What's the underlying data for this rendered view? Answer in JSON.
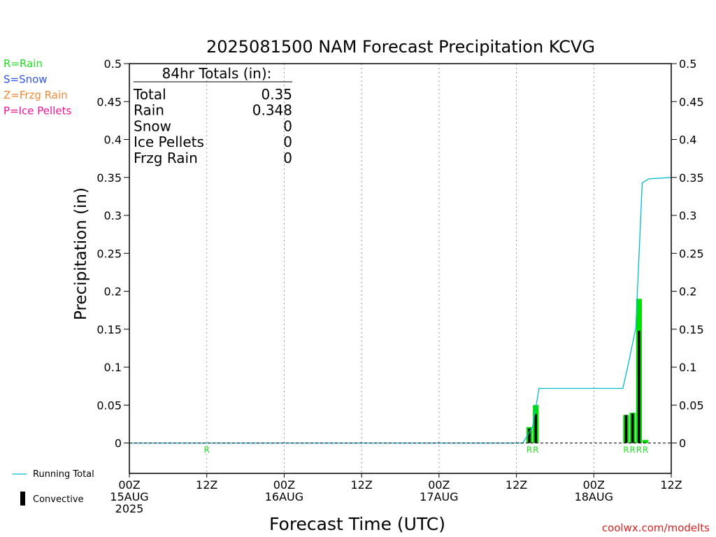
{
  "chart_data": {
    "type": "bar",
    "title": "2025081500 NAM Forecast Precipitation KCVG",
    "xlabel": "Forecast Time (UTC)",
    "ylabel": "Precipitation (in)",
    "ylim": [
      -0.04,
      0.5
    ],
    "xlim_hours": [
      0,
      84
    ],
    "grid": "vertical dotted",
    "y_ticks": [
      {
        "value": 0,
        "label": "0"
      },
      {
        "value": 0.05,
        "label": "0.05"
      },
      {
        "value": 0.1,
        "label": "0.1"
      },
      {
        "value": 0.15,
        "label": "0.15"
      },
      {
        "value": 0.2,
        "label": "0.2"
      },
      {
        "value": 0.25,
        "label": "0.25"
      },
      {
        "value": 0.3,
        "label": "0.3"
      },
      {
        "value": 0.35,
        "label": "0.35"
      },
      {
        "value": 0.4,
        "label": "0.4"
      },
      {
        "value": 0.45,
        "label": "0.45"
      },
      {
        "value": 0.5,
        "label": "0.5"
      }
    ],
    "x_ticks": [
      {
        "hour": 0,
        "lines": [
          "00Z",
          "15AUG",
          "2025"
        ]
      },
      {
        "hour": 12,
        "lines": [
          "12Z"
        ]
      },
      {
        "hour": 24,
        "lines": [
          "00Z",
          "16AUG"
        ]
      },
      {
        "hour": 36,
        "lines": [
          "12Z"
        ]
      },
      {
        "hour": 48,
        "lines": [
          "00Z",
          "17AUG"
        ]
      },
      {
        "hour": 60,
        "lines": [
          "12Z"
        ]
      },
      {
        "hour": 72,
        "lines": [
          "00Z",
          "18AUG"
        ]
      },
      {
        "hour": 84,
        "lines": [
          "12Z"
        ]
      }
    ],
    "series": [
      {
        "name": "Rain",
        "color": "#00dd00",
        "points": [
          {
            "hour": 62,
            "value": 0.021,
            "convective": 0.019
          },
          {
            "hour": 63,
            "value": 0.05,
            "convective": 0.038
          },
          {
            "hour": 77,
            "value": 0.037,
            "convective": 0.037
          },
          {
            "hour": 78,
            "value": 0.04,
            "convective": 0.039
          },
          {
            "hour": 79,
            "value": 0.19,
            "convective": 0.148
          },
          {
            "hour": 80,
            "value": 0.004,
            "convective": 0
          }
        ]
      },
      {
        "name": "Running Total",
        "color": "#00bbcc",
        "points": [
          {
            "hour": 0,
            "value": 0
          },
          {
            "hour": 61,
            "value": 0
          },
          {
            "hour": 62.5,
            "value": 0.021
          },
          {
            "hour": 63.5,
            "value": 0.072
          },
          {
            "hour": 76.5,
            "value": 0.072
          },
          {
            "hour": 77.5,
            "value": 0.11
          },
          {
            "hour": 78.5,
            "value": 0.152
          },
          {
            "hour": 79.5,
            "value": 0.343
          },
          {
            "hour": 80.5,
            "value": 0.348
          },
          {
            "hour": 84,
            "value": 0.35
          }
        ]
      }
    ],
    "type_markers": [
      {
        "hour": 12,
        "label": "R"
      },
      {
        "hour": 62,
        "label": "R"
      },
      {
        "hour": 63,
        "label": "R"
      },
      {
        "hour": 77,
        "label": "R"
      },
      {
        "hour": 78,
        "label": "R"
      },
      {
        "hour": 79,
        "label": "R"
      },
      {
        "hour": 80,
        "label": "R"
      }
    ],
    "precip_type_legend": [
      {
        "label": "R=Rain",
        "color": "#22dd22"
      },
      {
        "label": "S=Snow",
        "color": "#3355ee"
      },
      {
        "label": "Z=Frzg Rain",
        "color": "#ee8833"
      },
      {
        "label": "P=Ice Pellets",
        "color": "#ee1199"
      }
    ],
    "bottom_legend": {
      "running_total": "Running Total",
      "convective": "Convective",
      "running_total_color": "#00bbcc",
      "convective_color": "#000000"
    },
    "totals_box": {
      "heading": "84hr Totals (in):",
      "rows": [
        {
          "label": "Total",
          "value": "0.35"
        },
        {
          "label": "Rain",
          "value": "0.348"
        },
        {
          "label": "Snow",
          "value": "0"
        },
        {
          "label": "Ice Pellets",
          "value": "0"
        },
        {
          "label": "Frzg Rain",
          "value": "0"
        }
      ]
    },
    "credit": "coolwx.com/modelts",
    "credit_color": "#dd2222"
  }
}
